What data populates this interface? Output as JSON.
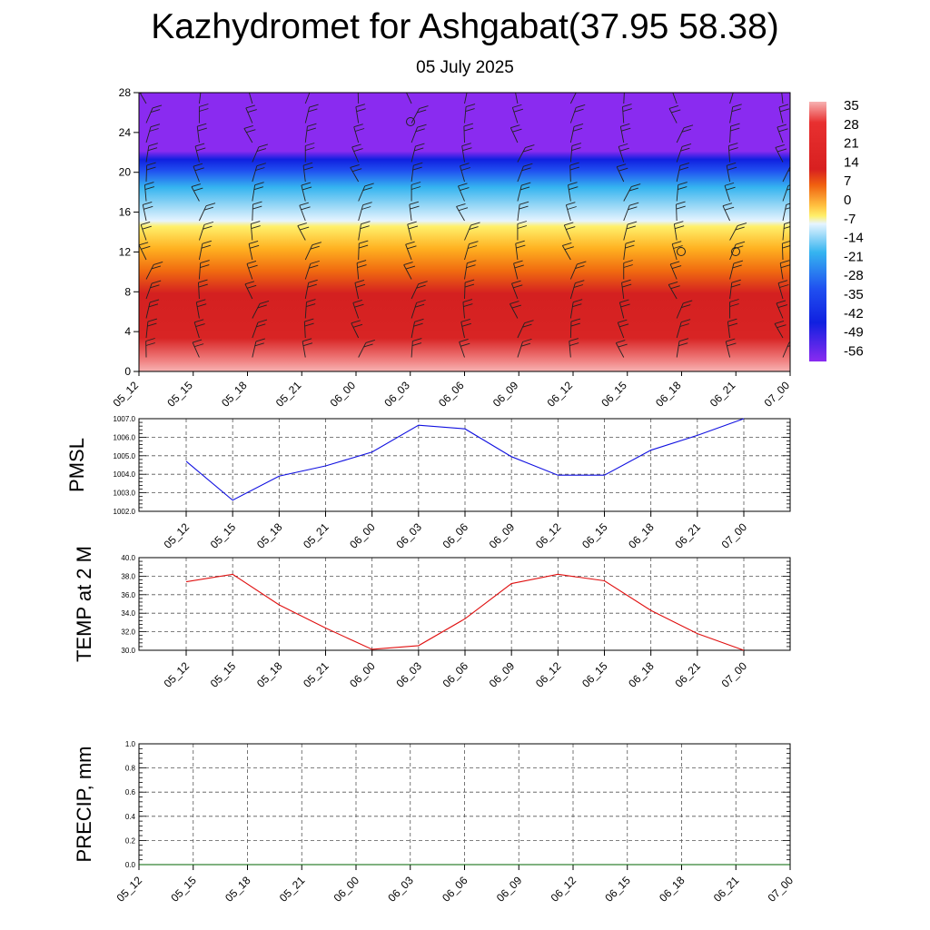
{
  "title": "Kazhydromet for Ashgabat(37.95 58.38)",
  "subtitle": "05 July 2025",
  "chart_data": [
    {
      "type": "heatmap",
      "name": "temperature-wind-profile",
      "x_ticks": [
        "05_12",
        "05_15",
        "05_18",
        "05_21",
        "06_00",
        "06_03",
        "06_06",
        "06_09",
        "06_12",
        "06_15",
        "06_18",
        "06_21",
        "07_00"
      ],
      "y_ticks": [
        "0",
        "4",
        "8",
        "12",
        "16",
        "20",
        "24",
        "28"
      ],
      "ylim": [
        0,
        28
      ],
      "colorbar_labels": [
        "35",
        "28",
        "21",
        "14",
        "7",
        "0",
        "-7",
        "-14",
        "-21",
        "-28",
        "-35",
        "-42",
        "-49",
        "-56"
      ],
      "colorbar_range": [
        -60,
        38
      ],
      "colors": {
        "hot": "#f7b2b2",
        "red": "#d42020",
        "orange": "#f06a10",
        "yellow": "#fff06a",
        "cyan": "#35b4f0",
        "blue": "#1020f0",
        "violet": "#8a2bf0"
      }
    },
    {
      "type": "line",
      "name": "PMSL",
      "ylabel": "PMSL",
      "x_ticks": [
        "05_12",
        "05_15",
        "05_18",
        "05_21",
        "06_00",
        "06_03",
        "06_06",
        "06_09",
        "06_12",
        "06_15",
        "06_18",
        "06_21",
        "07_00"
      ],
      "y_ticks": [
        "1002.0",
        "1003.0",
        "1004.0",
        "1005.0",
        "1006.0",
        "1007.0"
      ],
      "ylim": [
        1002.0,
        1007.0
      ],
      "values": [
        1004.7,
        1002.6,
        1003.9,
        1004.45,
        1005.2,
        1006.65,
        1006.45,
        1004.95,
        1003.95,
        1003.95,
        1005.3,
        1006.1,
        1007.0
      ],
      "color": "#1010e0",
      "grid": true
    },
    {
      "type": "line",
      "name": "TEMP at 2 M",
      "ylabel": "TEMP at 2 M",
      "x_ticks": [
        "05_12",
        "05_15",
        "05_18",
        "05_21",
        "06_00",
        "06_03",
        "06_06",
        "06_09",
        "06_12",
        "06_15",
        "06_18",
        "06_21",
        "07_00"
      ],
      "y_ticks": [
        "30.0",
        "32.0",
        "34.0",
        "36.0",
        "38.0",
        "40.0"
      ],
      "ylim": [
        30.0,
        40.0
      ],
      "values": [
        37.4,
        38.2,
        34.9,
        32.4,
        30.1,
        30.5,
        33.4,
        37.2,
        38.2,
        37.5,
        34.3,
        31.8,
        30.0
      ],
      "color": "#e01010",
      "grid": true
    },
    {
      "type": "line",
      "name": "PRECIP, mm",
      "ylabel": "PRECIP, mm",
      "x_ticks": [
        "05_12",
        "05_15",
        "05_18",
        "05_21",
        "06_00",
        "06_03",
        "06_06",
        "06_09",
        "06_12",
        "06_15",
        "06_18",
        "06_21",
        "07_00"
      ],
      "y_ticks": [
        "0.0",
        "0.2",
        "0.4",
        "0.6",
        "0.8",
        "1.0"
      ],
      "ylim": [
        0.0,
        1.0
      ],
      "values": [
        0,
        0,
        0,
        0,
        0,
        0,
        0,
        0,
        0,
        0,
        0,
        0,
        0
      ],
      "color": "#006400",
      "grid": true
    }
  ]
}
